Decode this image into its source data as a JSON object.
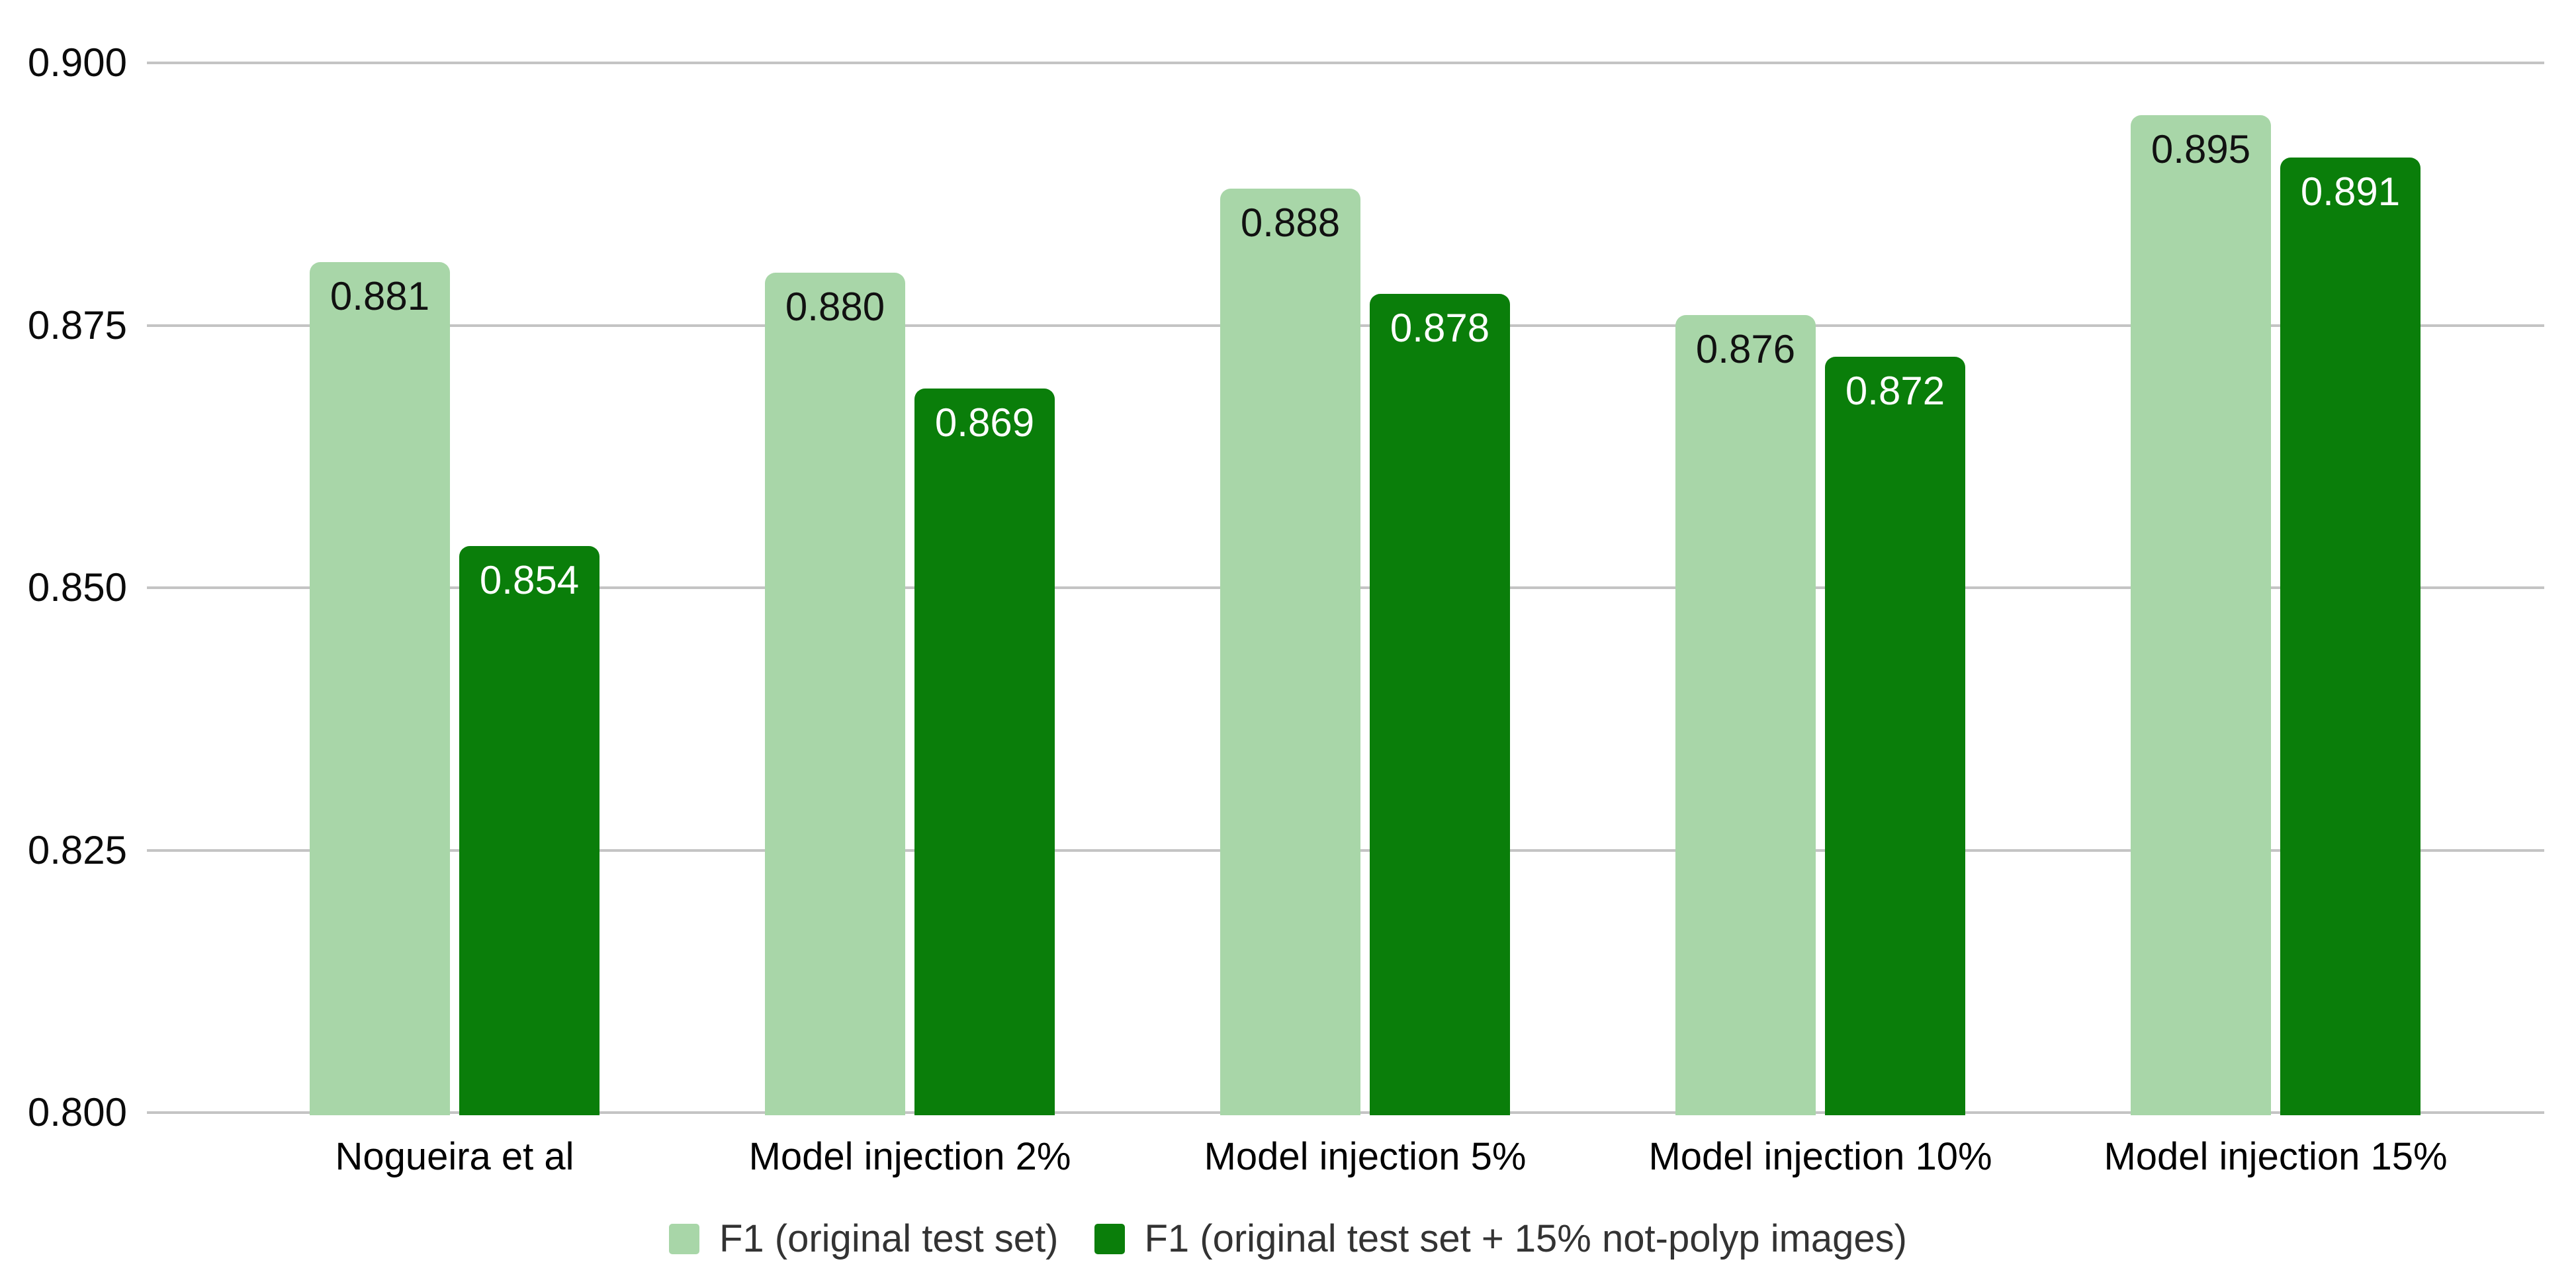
{
  "chart_data": {
    "type": "bar",
    "title": "",
    "categories": [
      "Nogueira et al",
      "Model injection 2%",
      "Model injection 5%",
      "Model injection 10%",
      "Model injection 15%"
    ],
    "series": [
      {
        "name": "F1 (original test set)",
        "color": "#a8d6a8",
        "label_color": "#111111",
        "values": [
          0.881,
          0.88,
          0.888,
          0.876,
          0.895
        ]
      },
      {
        "name": "F1 (original test set + 15% not-polyp images)",
        "color": "#0a7e0a",
        "label_color": "#ffffff",
        "values": [
          0.854,
          0.869,
          0.878,
          0.872,
          0.891
        ]
      }
    ],
    "ylim": [
      0.8,
      0.9
    ],
    "ytick_labels": [
      "0.800",
      "0.825",
      "0.850",
      "0.875",
      "0.900"
    ],
    "value_label_decimals": 3,
    "grid": true,
    "gridline_color": "#c4c4c4",
    "legend_position": "bottom",
    "xlabel": "",
    "ylabel": ""
  }
}
